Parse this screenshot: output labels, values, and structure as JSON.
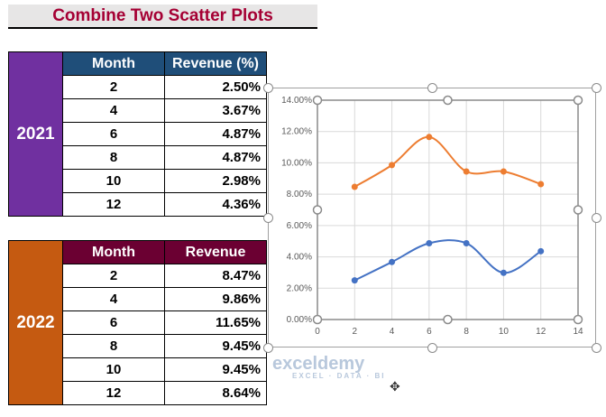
{
  "title": "Combine Two Scatter Plots",
  "table_2021": {
    "year": "2021",
    "headers": [
      "Month",
      "Revenue (%)"
    ],
    "rows": [
      [
        "2",
        "2.50%"
      ],
      [
        "4",
        "3.67%"
      ],
      [
        "6",
        "4.87%"
      ],
      [
        "8",
        "4.87%"
      ],
      [
        "10",
        "2.98%"
      ],
      [
        "12",
        "4.36%"
      ]
    ],
    "color": "#7030a0",
    "header_color": "#1f4e79"
  },
  "table_2022": {
    "year": "2022",
    "headers": [
      "Month",
      "Revenue"
    ],
    "rows": [
      [
        "2",
        "8.47%"
      ],
      [
        "4",
        "9.86%"
      ],
      [
        "6",
        "11.65%"
      ],
      [
        "8",
        "9.45%"
      ],
      [
        "10",
        "9.45%"
      ],
      [
        "12",
        "8.64%"
      ]
    ],
    "color": "#c55a11",
    "header_color": "#6b0032"
  },
  "watermark": {
    "name": "exceldemy",
    "tagline": "EXCEL · DATA · BI"
  },
  "chart_data": {
    "type": "scatter",
    "smooth": true,
    "markers": true,
    "xlim": [
      0,
      14
    ],
    "ylim": [
      0,
      14
    ],
    "xticks": [
      "0",
      "2",
      "4",
      "6",
      "8",
      "10",
      "12",
      "14"
    ],
    "yticks": [
      "0.00%",
      "2.00%",
      "4.00%",
      "6.00%",
      "8.00%",
      "10.00%",
      "12.00%",
      "14.00%"
    ],
    "grid": true,
    "legend": "none",
    "series": [
      {
        "x": [
          2,
          4,
          6,
          8,
          10,
          12
        ],
        "y": [
          2.5,
          3.67,
          4.87,
          4.87,
          2.98,
          4.36
        ],
        "color": "#4472c4"
      },
      {
        "x": [
          2,
          4,
          6,
          8,
          10,
          12
        ],
        "y": [
          8.47,
          9.86,
          11.65,
          9.45,
          9.45,
          8.64
        ],
        "color": "#ed7d31"
      }
    ]
  }
}
